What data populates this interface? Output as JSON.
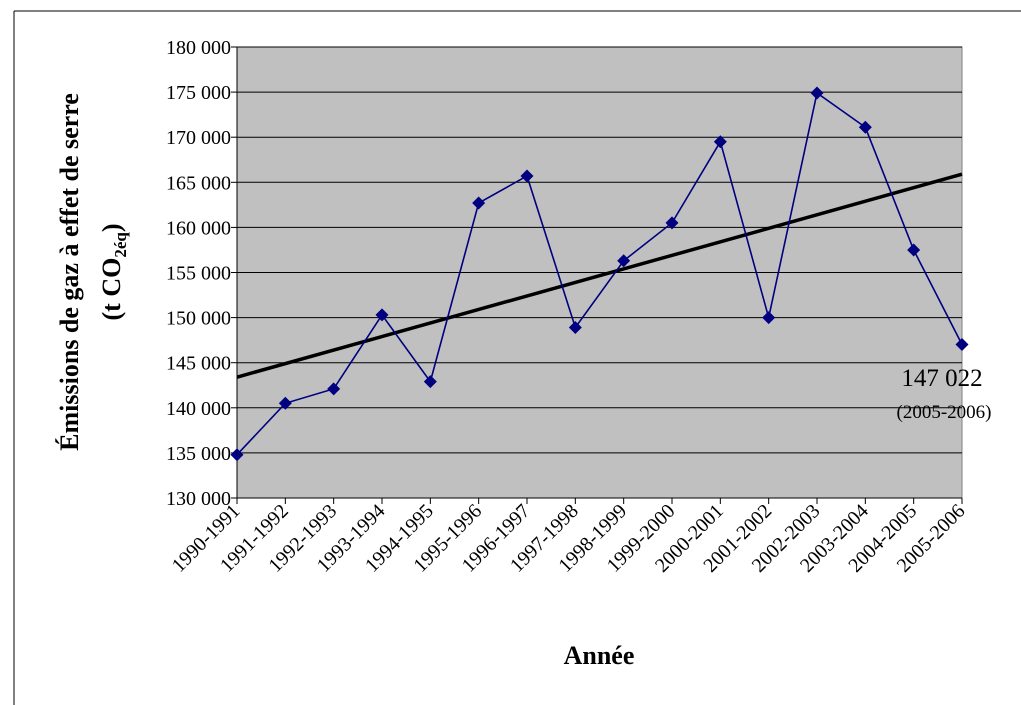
{
  "chart_data": {
    "type": "line",
    "categories": [
      "1990-1991",
      "1991-1992",
      "1992-1993",
      "1993-1994",
      "1994-1995",
      "1995-1996",
      "1996-1997",
      "1997-1998",
      "1998-1999",
      "1999-2000",
      "2000-2001",
      "2001-2002",
      "2002-2003",
      "2003-2004",
      "2004-2005",
      "2005-2006"
    ],
    "series": [
      {
        "values": [
          134800,
          140500,
          142100,
          150300,
          142900,
          162700,
          165700,
          148900,
          156300,
          160500,
          169500,
          150000,
          174900,
          171100,
          157500,
          147022
        ]
      }
    ],
    "trendline": {
      "start": 143400,
      "end": 165900
    },
    "ylim": [
      130000,
      180000
    ],
    "ytick_step": 5000,
    "ytick_labels": [
      "130 000",
      "135 000",
      "140 000",
      "145 000",
      "150 000",
      "155 000",
      "160 000",
      "165 000",
      "170 000",
      "175 000",
      "180 000"
    ],
    "xlabel": "Année",
    "ylabel_main": "Émissions de gaz à effet de serre",
    "ylabel_unit_prefix": "(t CO",
    "ylabel_unit_sub": "2éq",
    "ylabel_unit_suffix": ")",
    "annotation": {
      "value": "147 022",
      "period": "(2005-2006)"
    },
    "grid": true,
    "legend": "none",
    "colors": {
      "plot_bg": "#c0c0c0",
      "series": "#000080",
      "trend": "#000000",
      "grid": "#000000"
    }
  }
}
